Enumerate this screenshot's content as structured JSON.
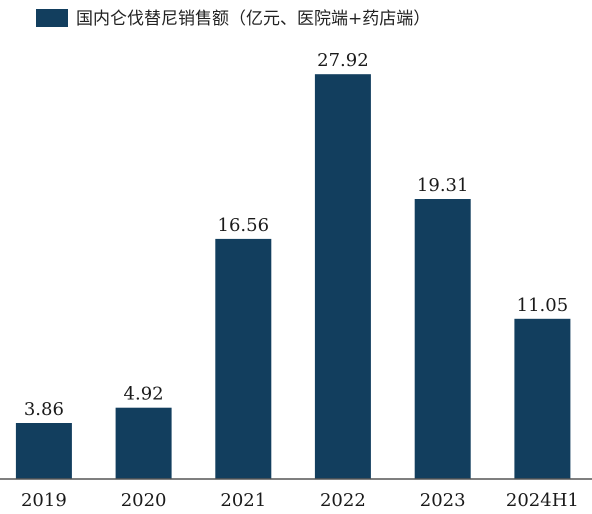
{
  "chart_data": {
    "type": "bar",
    "title": "",
    "xlabel": "",
    "ylabel": "",
    "categories": [
      "2019",
      "2020",
      "2021",
      "2022",
      "2023",
      "2024H1"
    ],
    "series": [
      {
        "name": "国内仑伐替尼销售额（亿元、医院端+药店端）",
        "values": [
          3.86,
          4.92,
          16.56,
          27.92,
          19.31,
          11.05
        ]
      }
    ],
    "data_labels": [
      "3.86",
      "4.92",
      "16.56",
      "27.92",
      "19.31",
      "11.05"
    ],
    "ylim": [
      0,
      30
    ],
    "grid": false,
    "legend_position": "top-left",
    "colors": {
      "bar": "#123e5e",
      "axis": "#555555",
      "text": "#1a1a1a"
    }
  }
}
